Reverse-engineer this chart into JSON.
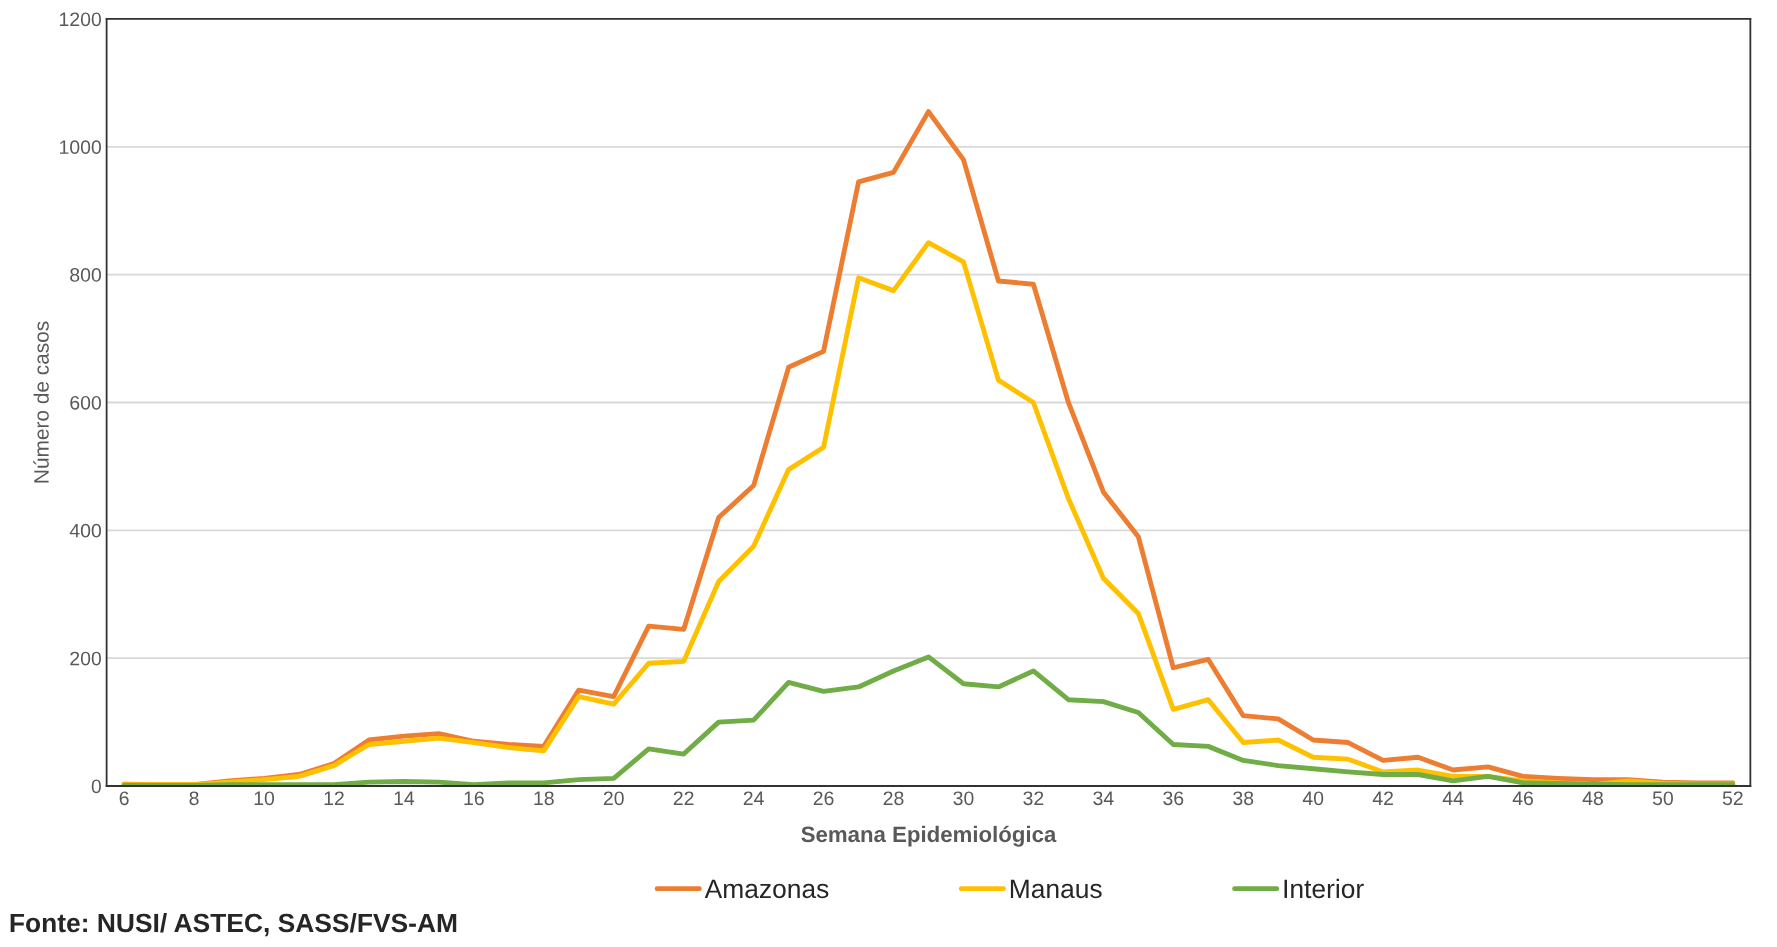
{
  "chart_data": {
    "type": "line",
    "xlabel": "Semana Epidemiológica",
    "ylabel": "Número de casos",
    "x": [
      6,
      7,
      8,
      9,
      10,
      11,
      12,
      13,
      14,
      15,
      16,
      17,
      18,
      19,
      20,
      21,
      22,
      23,
      24,
      25,
      26,
      27,
      28,
      29,
      30,
      31,
      32,
      33,
      34,
      35,
      36,
      37,
      38,
      39,
      40,
      41,
      42,
      43,
      44,
      45,
      46,
      47,
      48,
      49,
      50,
      51,
      52
    ],
    "series": [
      {
        "name": "Amazonas",
        "color": "#ed7d31",
        "values": [
          3,
          2,
          2,
          8,
          12,
          18,
          35,
          72,
          78,
          82,
          70,
          65,
          62,
          150,
          140,
          250,
          245,
          420,
          470,
          655,
          680,
          945,
          960,
          1055,
          980,
          790,
          785,
          600,
          460,
          390,
          185,
          198,
          110,
          105,
          72,
          68,
          40,
          45,
          25,
          30,
          15,
          12,
          10,
          10,
          6,
          5,
          5
        ]
      },
      {
        "name": "Manaus",
        "color": "#ffc000",
        "values": [
          2,
          2,
          2,
          6,
          10,
          15,
          32,
          65,
          70,
          75,
          68,
          60,
          55,
          140,
          128,
          192,
          195,
          320,
          375,
          495,
          530,
          795,
          775,
          850,
          820,
          635,
          600,
          450,
          325,
          270,
          120,
          135,
          68,
          72,
          45,
          42,
          22,
          25,
          15,
          15,
          8,
          5,
          2,
          8,
          4,
          3,
          3
        ]
      },
      {
        "name": "Interior",
        "color": "#70ad47",
        "values": [
          1,
          1,
          1,
          2,
          2,
          2,
          2,
          6,
          7,
          6,
          2,
          5,
          5,
          10,
          12,
          58,
          50,
          100,
          103,
          162,
          148,
          155,
          180,
          202,
          160,
          155,
          180,
          135,
          132,
          115,
          65,
          62,
          40,
          32,
          27,
          22,
          18,
          18,
          8,
          15,
          5,
          4,
          3,
          2,
          2,
          2,
          2
        ]
      }
    ],
    "xlim": [
      5.5,
      52.5
    ],
    "xticks": [
      6,
      8,
      10,
      12,
      14,
      16,
      18,
      20,
      22,
      24,
      26,
      28,
      30,
      32,
      34,
      36,
      38,
      40,
      42,
      44,
      46,
      48,
      50,
      52
    ],
    "ylim": [
      0,
      1200
    ],
    "yticks": [
      0,
      200,
      400,
      600,
      800,
      1000,
      1200
    ],
    "grid": "y",
    "legend": "bottom",
    "line_style": "solid",
    "marker": "none",
    "annotations": [
      "Fonte: NUSI/ ASTEC, SASS/FVS-AM"
    ]
  }
}
